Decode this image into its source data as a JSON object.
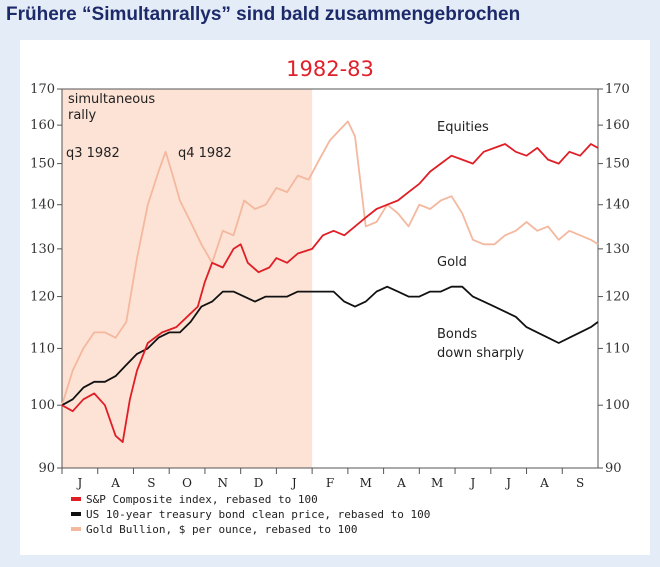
{
  "headline": "Frühere “Simultanrallys” sind bald zusammengebrochen",
  "chart_data": {
    "type": "line",
    "subtitle": "1982-83",
    "ylim": [
      90,
      170
    ],
    "yscale": "log",
    "yticks": [
      90,
      100,
      110,
      120,
      130,
      140,
      150,
      160,
      170
    ],
    "months": [
      "J",
      "A",
      "S",
      "O",
      "N",
      "D",
      "J",
      "F",
      "M",
      "A",
      "M",
      "J",
      "J",
      "A",
      "S"
    ],
    "shaded_region": {
      "from": 0,
      "to": 7,
      "color": "#fde3d6"
    },
    "annotations": [
      "simultaneous",
      "rally",
      "q3 1982",
      "q4 1982",
      "Equities",
      "Gold",
      "Bonds",
      "down sharply"
    ],
    "series": [
      {
        "name": "S&P Composite index, rebased to 100",
        "color": "#e01e26",
        "x": [
          0,
          0.3,
          0.6,
          0.9,
          1.2,
          1.5,
          1.7,
          1.9,
          2.1,
          2.4,
          2.8,
          3.2,
          3.5,
          3.8,
          4.0,
          4.2,
          4.5,
          4.8,
          5.0,
          5.2,
          5.5,
          5.8,
          6.0,
          6.3,
          6.6,
          7.0,
          7.3,
          7.6,
          7.9,
          8.2,
          8.5,
          8.8,
          9.1,
          9.4,
          9.7,
          10.0,
          10.3,
          10.6,
          10.9,
          11.2,
          11.5,
          11.8,
          12.1,
          12.4,
          12.7,
          13.0,
          13.3,
          13.6,
          13.9,
          14.2,
          14.5,
          14.8,
          15.0
        ],
        "y": [
          100,
          99,
          101,
          102,
          100,
          95,
          94,
          101,
          106,
          111,
          113,
          114,
          116,
          118,
          123,
          127,
          126,
          130,
          131,
          127,
          125,
          126,
          128,
          127,
          129,
          130,
          133,
          134,
          133,
          135,
          137,
          139,
          140,
          141,
          143,
          145,
          148,
          150,
          152,
          151,
          150,
          153,
          154,
          155,
          153,
          152,
          154,
          151,
          150,
          153,
          152,
          155,
          154
        ]
      },
      {
        "name": "US 10-year treasury bond clean price, rebased to 100",
        "color": "#111111",
        "x": [
          0,
          0.3,
          0.6,
          0.9,
          1.2,
          1.5,
          1.8,
          2.1,
          2.4,
          2.7,
          3.0,
          3.3,
          3.6,
          3.9,
          4.2,
          4.5,
          4.8,
          5.1,
          5.4,
          5.7,
          6.0,
          6.3,
          6.6,
          7.0,
          7.3,
          7.6,
          7.9,
          8.2,
          8.5,
          8.8,
          9.1,
          9.4,
          9.7,
          10.0,
          10.3,
          10.6,
          10.9,
          11.2,
          11.5,
          11.8,
          12.1,
          12.4,
          12.7,
          13.0,
          13.3,
          13.6,
          13.9,
          14.2,
          14.5,
          14.8,
          15.0
        ],
        "y": [
          100,
          101,
          103,
          104,
          104,
          105,
          107,
          109,
          110,
          112,
          113,
          113,
          115,
          118,
          119,
          121,
          121,
          120,
          119,
          120,
          120,
          120,
          121,
          121,
          121,
          121,
          119,
          118,
          119,
          121,
          122,
          121,
          120,
          120,
          121,
          121,
          122,
          122,
          120,
          119,
          118,
          117,
          116,
          114,
          113,
          112,
          111,
          112,
          113,
          114,
          115
        ]
      },
      {
        "name": "Gold Bullion, $ per ounce, rebased to 100",
        "color": "#f4b89e",
        "x": [
          0,
          0.3,
          0.6,
          0.9,
          1.2,
          1.5,
          1.8,
          2.1,
          2.4,
          2.7,
          2.9,
          3.1,
          3.3,
          3.6,
          3.9,
          4.2,
          4.5,
          4.8,
          5.1,
          5.4,
          5.7,
          6.0,
          6.3,
          6.6,
          6.9,
          7.2,
          7.5,
          7.8,
          8.0,
          8.2,
          8.5,
          8.8,
          9.1,
          9.4,
          9.7,
          10.0,
          10.3,
          10.6,
          10.9,
          11.2,
          11.5,
          11.8,
          12.1,
          12.4,
          12.7,
          13.0,
          13.3,
          13.6,
          13.9,
          14.2,
          14.5,
          14.8,
          15.0
        ],
        "y": [
          100,
          106,
          110,
          113,
          113,
          112,
          115,
          128,
          140,
          148,
          153,
          147,
          141,
          136,
          131,
          127,
          134,
          133,
          141,
          139,
          140,
          144,
          143,
          147,
          146,
          151,
          156,
          159,
          161,
          157,
          135,
          136,
          140,
          138,
          135,
          140,
          139,
          141,
          142,
          138,
          132,
          131,
          131,
          133,
          134,
          136,
          134,
          135,
          132,
          134,
          133,
          132,
          131
        ]
      }
    ]
  }
}
